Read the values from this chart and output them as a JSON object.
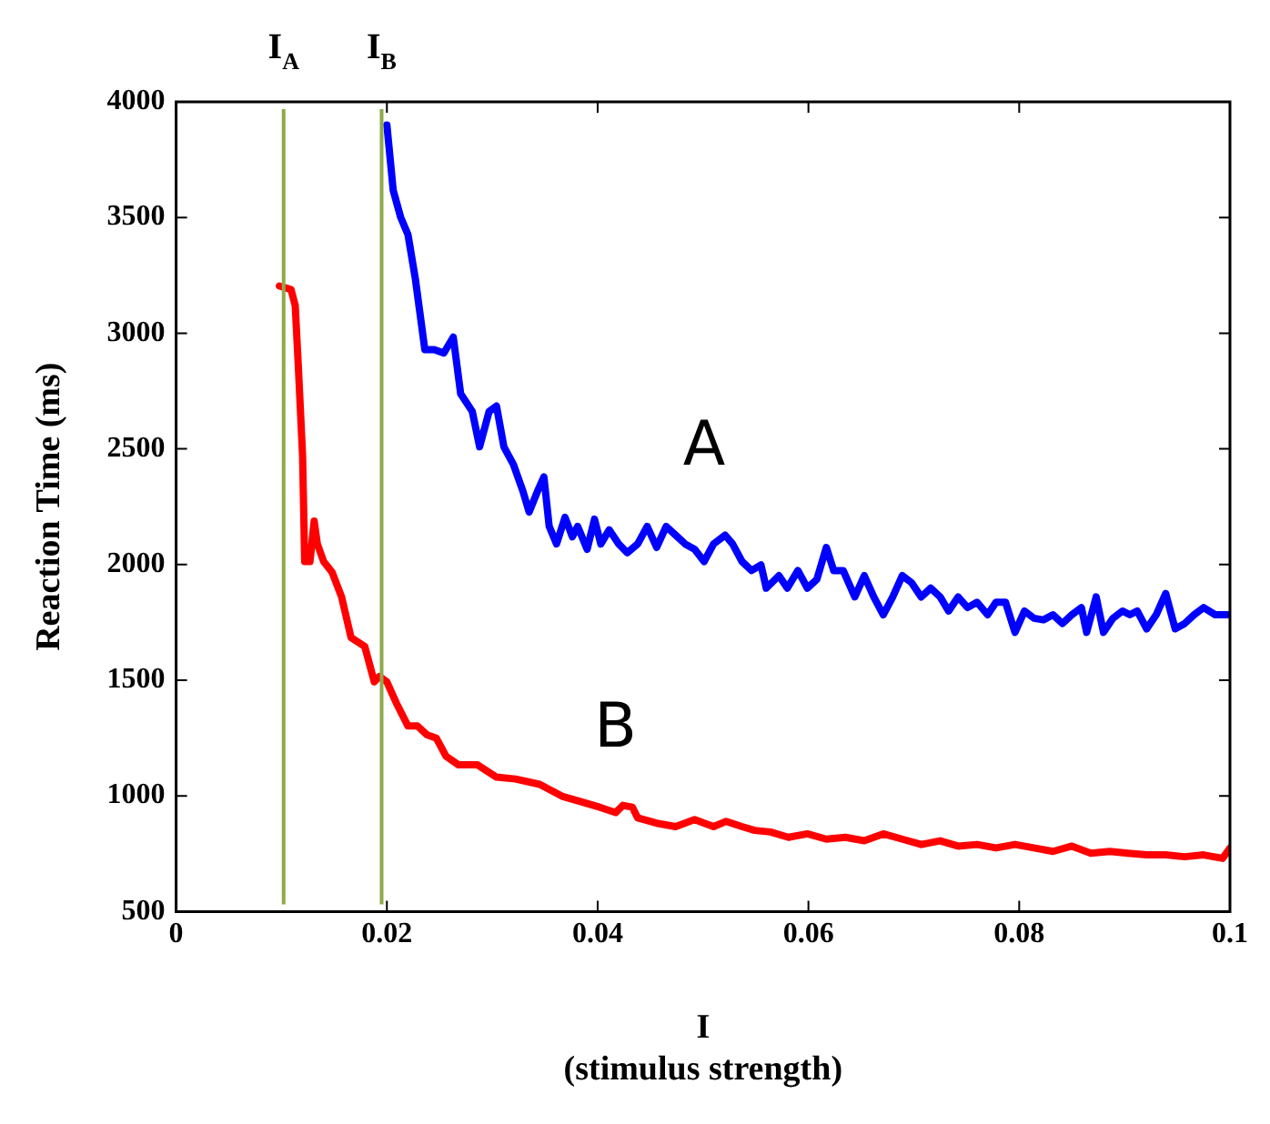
{
  "chart_data": {
    "type": "line",
    "xlabel": "I\n(stimulus strength)",
    "ylabel": "Reaction Time (ms)",
    "xlim": [
      0,
      0.1
    ],
    "xticks": [
      0,
      0.02,
      0.04,
      0.06,
      0.08,
      0.1
    ],
    "ylim": [
      500,
      4000
    ],
    "yticks": [
      500,
      1000,
      1500,
      2000,
      2500,
      3000,
      3500,
      4000
    ],
    "grid": false,
    "legend": false,
    "marker": "none",
    "line_style": "solid",
    "ref_lines": [
      {
        "axis": "x",
        "value": 0.0102,
        "label": "I$_{A}$",
        "color": "#8faa4a"
      },
      {
        "axis": "x",
        "value": 0.0195,
        "label": "I$_{B}$",
        "color": "#8faa4a"
      }
    ],
    "series": [
      {
        "name": "A",
        "color": "#0000ff",
        "x": [
          0.02,
          0.0206,
          0.0213,
          0.022,
          0.0227,
          0.0236,
          0.0245,
          0.0254,
          0.0263,
          0.027,
          0.0281,
          0.0288,
          0.0297,
          0.0304,
          0.0311,
          0.032,
          0.0329,
          0.0335,
          0.0343,
          0.0349,
          0.0354,
          0.0361,
          0.0369,
          0.0376,
          0.0381,
          0.039,
          0.0397,
          0.0403,
          0.0411,
          0.042,
          0.0428,
          0.0438,
          0.0447,
          0.0456,
          0.0465,
          0.0474,
          0.0483,
          0.0492,
          0.0501,
          0.051,
          0.0521,
          0.0528,
          0.0537,
          0.0546,
          0.0555,
          0.056,
          0.0572,
          0.058,
          0.059,
          0.0599,
          0.0608,
          0.0617,
          0.0624,
          0.0633,
          0.0644,
          0.0653,
          0.0662,
          0.0671,
          0.068,
          0.0689,
          0.0698,
          0.0707,
          0.0716,
          0.0725,
          0.0733,
          0.0742,
          0.0751,
          0.076,
          0.077,
          0.0778,
          0.0787,
          0.0796,
          0.0805,
          0.0814,
          0.0823,
          0.0832,
          0.0841,
          0.085,
          0.0859,
          0.0864,
          0.0873,
          0.088,
          0.0889,
          0.0898,
          0.0905,
          0.0912,
          0.0921,
          0.093,
          0.0939,
          0.0948,
          0.0957,
          0.0966,
          0.0975,
          0.0986,
          0.0998
        ],
        "values": [
          3900,
          3617,
          3502,
          3426,
          3235,
          2929,
          2929,
          2914,
          2983,
          2738,
          2662,
          2509,
          2662,
          2685,
          2509,
          2433,
          2318,
          2227,
          2318,
          2379,
          2165,
          2089,
          2204,
          2120,
          2165,
          2066,
          2196,
          2089,
          2150,
          2089,
          2051,
          2089,
          2165,
          2074,
          2165,
          2127,
          2089,
          2066,
          2013,
          2089,
          2127,
          2089,
          2013,
          1974,
          1998,
          1898,
          1952,
          1898,
          1974,
          1898,
          1936,
          2074,
          1974,
          1974,
          1860,
          1952,
          1860,
          1783,
          1860,
          1952,
          1921,
          1860,
          1898,
          1860,
          1799,
          1860,
          1814,
          1837,
          1783,
          1837,
          1837,
          1707,
          1799,
          1768,
          1761,
          1783,
          1745,
          1783,
          1814,
          1707,
          1860,
          1707,
          1768,
          1799,
          1783,
          1799,
          1722,
          1783,
          1875,
          1722,
          1745,
          1783,
          1814,
          1783,
          1783
        ]
      },
      {
        "name": "B",
        "color": "#ff0000",
        "x": [
          0.0098,
          0.0109,
          0.0113,
          0.0116,
          0.012,
          0.0122,
          0.0127,
          0.0131,
          0.0134,
          0.014,
          0.0148,
          0.0157,
          0.0166,
          0.0179,
          0.0188,
          0.0193,
          0.02,
          0.0209,
          0.022,
          0.0229,
          0.0238,
          0.0247,
          0.0256,
          0.0268,
          0.0286,
          0.0304,
          0.0322,
          0.0345,
          0.0367,
          0.0385,
          0.0402,
          0.0417,
          0.0424,
          0.0433,
          0.0438,
          0.0456,
          0.0474,
          0.0492,
          0.051,
          0.0522,
          0.0537,
          0.0549,
          0.0564,
          0.0581,
          0.0599,
          0.0617,
          0.0635,
          0.0653,
          0.0671,
          0.0689,
          0.0707,
          0.0725,
          0.0742,
          0.076,
          0.0778,
          0.0796,
          0.0814,
          0.0832,
          0.085,
          0.0868,
          0.0886,
          0.0903,
          0.0921,
          0.0939,
          0.0957,
          0.0975,
          0.0993,
          0.1
        ],
        "values": [
          3204,
          3189,
          3120,
          2853,
          2471,
          2013,
          2013,
          2188,
          2089,
          2013,
          1967,
          1860,
          1684,
          1646,
          1493,
          1516,
          1493,
          1401,
          1302,
          1302,
          1264,
          1249,
          1172,
          1134,
          1134,
          1081,
          1073,
          1050,
          997,
          974,
          951,
          928,
          959,
          951,
          905,
          882,
          867,
          898,
          867,
          890,
          867,
          851,
          844,
          821,
          836,
          813,
          821,
          806,
          836,
          813,
          790,
          806,
          783,
          790,
          775,
          790,
          775,
          760,
          783,
          752,
          760,
          752,
          745,
          745,
          737,
          745,
          730,
          775
        ]
      }
    ]
  }
}
